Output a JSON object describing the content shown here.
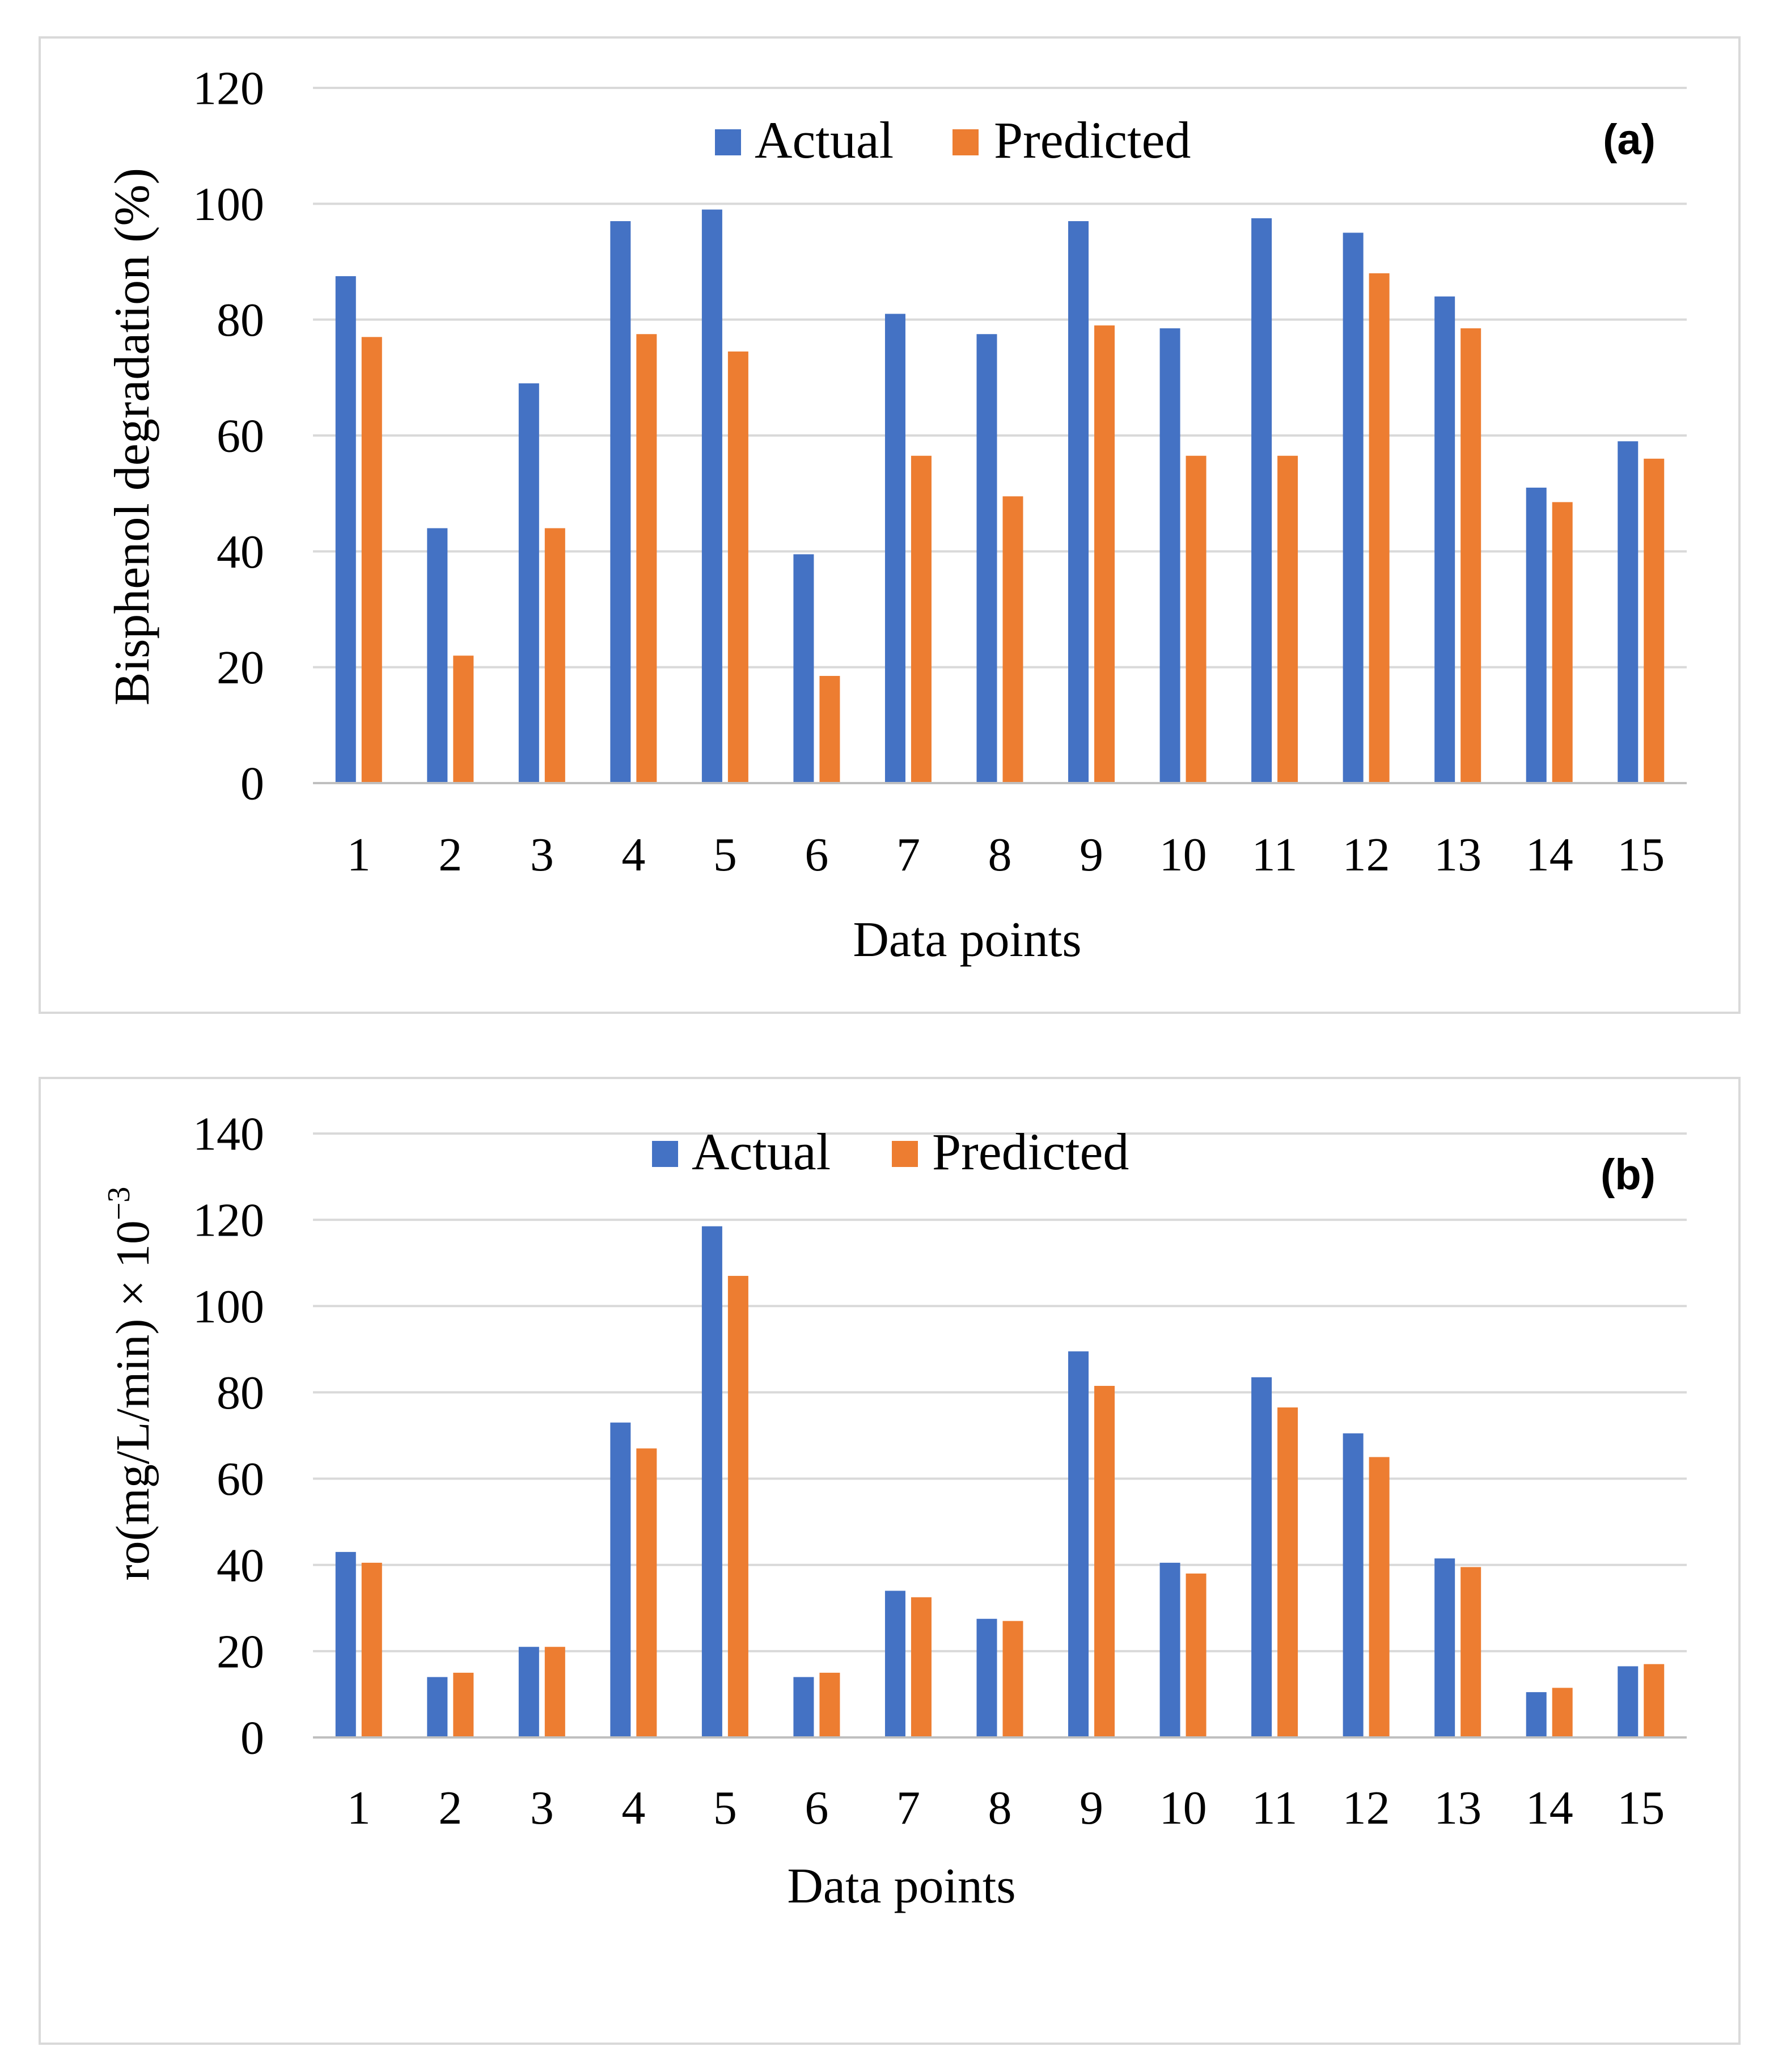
{
  "colors": {
    "actual": "#4472C4",
    "predicted": "#ED7D31",
    "gridline": "#D9D9D9",
    "frame": "#D9D9D9",
    "axis": "#BFBFBF"
  },
  "chart_data": [
    {
      "type": "bar",
      "panel_label": "(a)",
      "title": "",
      "xlabel": "Data points",
      "ylabel": "Bisphenol degradation (%)",
      "ylim": [
        0,
        120
      ],
      "yticks": [
        "0",
        "20",
        "40",
        "60",
        "80",
        "100",
        "120"
      ],
      "grid": true,
      "legend_position": "top-center",
      "categories": [
        "1",
        "2",
        "3",
        "4",
        "5",
        "6",
        "7",
        "8",
        "9",
        "10",
        "11",
        "12",
        "13",
        "14",
        "15"
      ],
      "series": [
        {
          "name": "Actual",
          "values": [
            87.5,
            44,
            69,
            97,
            99,
            39.5,
            81,
            77.5,
            97,
            78.5,
            97.5,
            95,
            84,
            51,
            59
          ]
        },
        {
          "name": "Predicted",
          "values": [
            77,
            22,
            44,
            77.5,
            74.5,
            18.5,
            56.5,
            49.5,
            79,
            56.5,
            56.5,
            88,
            78.5,
            48.5,
            56
          ]
        }
      ]
    },
    {
      "type": "bar",
      "panel_label": "(b)",
      "title": "",
      "xlabel": "Data points",
      "ylabel": "ro(mg/L/min) × 10",
      "ylabel_superscript": "−3",
      "ylim": [
        0,
        140
      ],
      "yticks": [
        "0",
        "20",
        "40",
        "60",
        "80",
        "100",
        "120",
        "140"
      ],
      "grid": true,
      "legend_position": "top-center",
      "categories": [
        "1",
        "2",
        "3",
        "4",
        "5",
        "6",
        "7",
        "8",
        "9",
        "10",
        "11",
        "12",
        "13",
        "14",
        "15"
      ],
      "series": [
        {
          "name": "Actual",
          "values": [
            43,
            14,
            21,
            73,
            118.5,
            14,
            34,
            27.5,
            89.5,
            40.5,
            83.5,
            70.5,
            41.5,
            10.5,
            16.5
          ]
        },
        {
          "name": "Predicted",
          "values": [
            40.5,
            15,
            21,
            67,
            107,
            15,
            32.5,
            27,
            81.5,
            38,
            76.5,
            65,
            39.5,
            11.5,
            17
          ]
        }
      ]
    }
  ]
}
